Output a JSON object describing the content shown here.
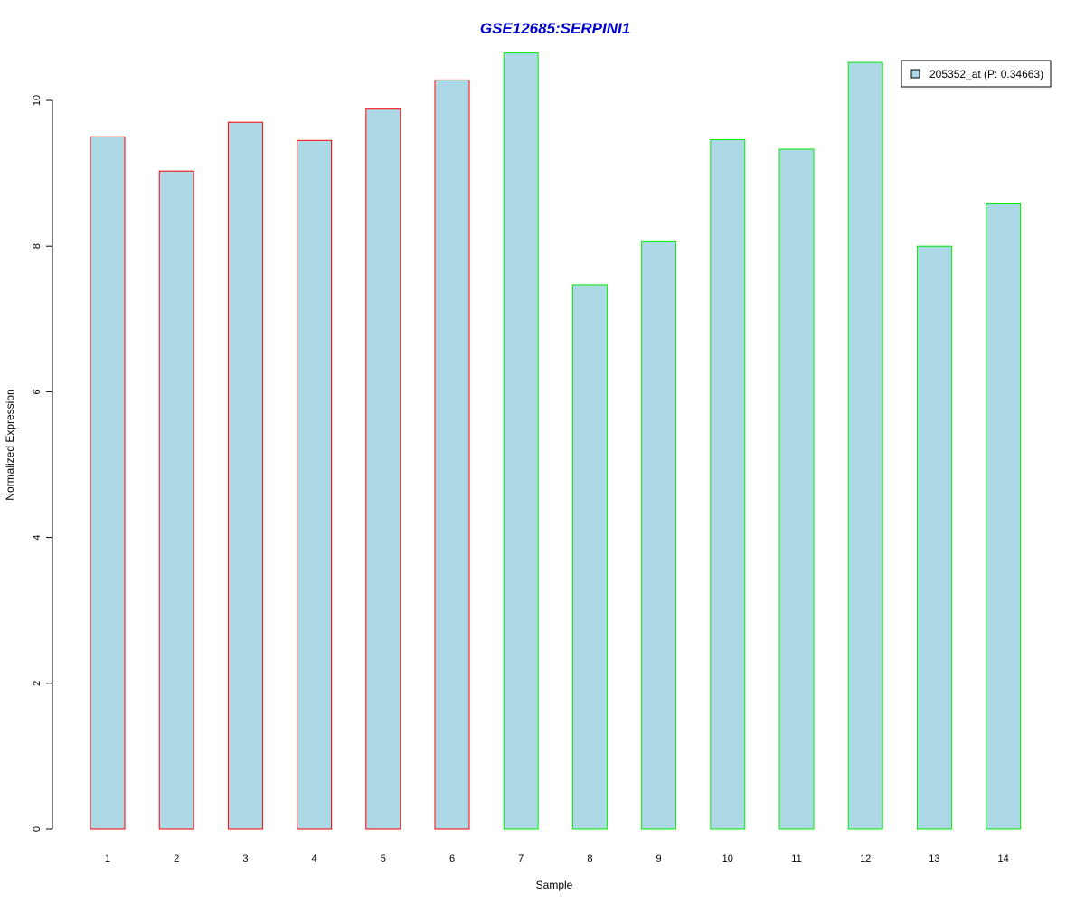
{
  "chart_data": {
    "type": "bar",
    "title": "GSE12685:SERPINI1",
    "title_color": "#0000cc",
    "xlabel": "Sample",
    "ylabel": "Normalized Expression",
    "categories": [
      "1",
      "2",
      "3",
      "4",
      "5",
      "6",
      "7",
      "8",
      "9",
      "10",
      "11",
      "12",
      "13",
      "14"
    ],
    "series": [
      {
        "name": "205352_at (P: 0.34663)",
        "values": [
          9.5,
          9.03,
          9.7,
          9.45,
          9.88,
          10.28,
          10.65,
          7.47,
          8.06,
          9.46,
          9.33,
          10.52,
          8.0,
          8.58
        ]
      }
    ],
    "groups": [
      "red",
      "red",
      "red",
      "red",
      "red",
      "red",
      "green",
      "green",
      "green",
      "green",
      "green",
      "green",
      "green",
      "green"
    ],
    "ylim": [
      0,
      10.7
    ],
    "yticks": [
      0,
      2,
      4,
      6,
      8,
      10
    ],
    "grid": false,
    "legend_position": "top-right",
    "colors": {
      "bar_fill": "#add8e6",
      "red": "#ff0000",
      "green": "#00ee00",
      "axis": "#000000"
    }
  }
}
